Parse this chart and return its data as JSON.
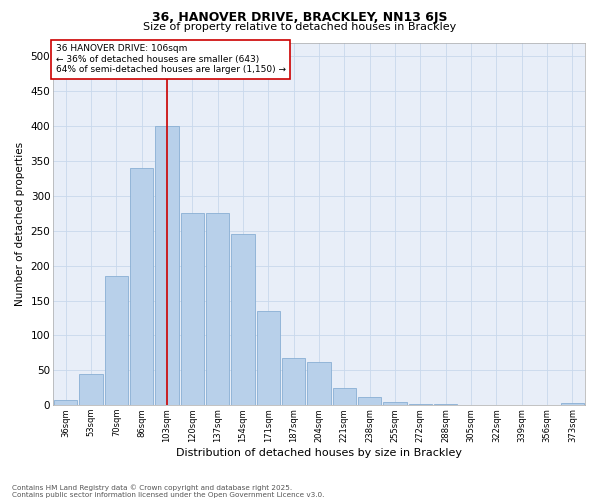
{
  "title1": "36, HANOVER DRIVE, BRACKLEY, NN13 6JS",
  "title2": "Size of property relative to detached houses in Brackley",
  "xlabel": "Distribution of detached houses by size in Brackley",
  "ylabel": "Number of detached properties",
  "categories": [
    "36sqm",
    "53sqm",
    "70sqm",
    "86sqm",
    "103sqm",
    "120sqm",
    "137sqm",
    "154sqm",
    "171sqm",
    "187sqm",
    "204sqm",
    "221sqm",
    "238sqm",
    "255sqm",
    "272sqm",
    "288sqm",
    "305sqm",
    "322sqm",
    "339sqm",
    "356sqm",
    "373sqm"
  ],
  "bar_values": [
    8,
    45,
    185,
    340,
    400,
    275,
    275,
    245,
    135,
    68,
    62,
    25,
    11,
    4,
    2,
    2,
    0,
    0,
    0,
    0,
    3
  ],
  "bar_color": "#b8d0ea",
  "bar_edge_color": "#89afd4",
  "vline_color": "#cc0000",
  "annotation_text": "36 HANOVER DRIVE: 106sqm\n← 36% of detached houses are smaller (643)\n64% of semi-detached houses are larger (1,150) →",
  "annotation_box_facecolor": "#ffffff",
  "annotation_box_edgecolor": "#cc0000",
  "ylim": [
    0,
    520
  ],
  "yticks": [
    0,
    50,
    100,
    150,
    200,
    250,
    300,
    350,
    400,
    450,
    500
  ],
  "grid_color": "#c8d8ec",
  "background_color": "#e8eef8",
  "footer1": "Contains HM Land Registry data © Crown copyright and database right 2025.",
  "footer2": "Contains public sector information licensed under the Open Government Licence v3.0."
}
